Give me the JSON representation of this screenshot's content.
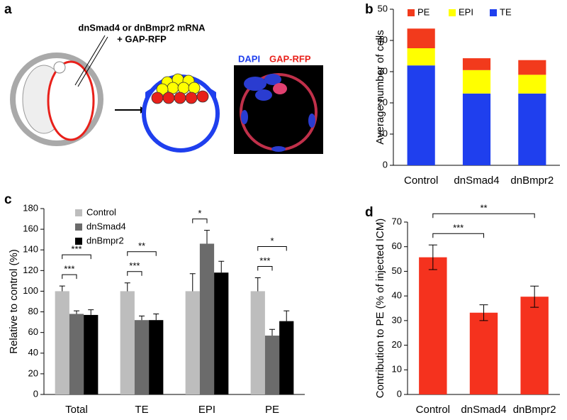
{
  "figure_a": {
    "label": "a",
    "injection": "dnSmad4 or dnBmpr2 mRNA",
    "injection_2": "+ GAP-RFP",
    "stain_1": "DAPI",
    "stain_2": "GAP-RFP"
  },
  "chart_data": [
    {
      "type": "stacked_bar",
      "label": "b",
      "ylabel": "Average number of cells",
      "categories": [
        "Control",
        "dnSmad4",
        "dnBmpr2"
      ],
      "series": [
        {
          "name": "TE",
          "color": "#1f3fee",
          "values": [
            32,
            23,
            23
          ]
        },
        {
          "name": "EPI",
          "color": "#ffff00",
          "values": [
            5.5,
            7.5,
            6
          ]
        },
        {
          "name": "PE",
          "color": "#f23a1c",
          "values": [
            6.3,
            3.8,
            4.7
          ]
        }
      ],
      "ylim": [
        0,
        50
      ],
      "yticks": [
        0,
        10,
        20,
        30,
        40,
        50
      ],
      "legend": "top"
    },
    {
      "type": "grouped_bar",
      "label": "c",
      "ylabel": "Relative to control (%)",
      "categories": [
        "Total",
        "TE",
        "EPI",
        "PE"
      ],
      "series": [
        {
          "name": "Control",
          "color": "#bdbdbd",
          "values": [
            100,
            100,
            100,
            100
          ],
          "errors": [
            5,
            8,
            17,
            13
          ]
        },
        {
          "name": "dnSmad4",
          "color": "#6b6b6b",
          "values": [
            78,
            72,
            146,
            57
          ],
          "errors": [
            3,
            4,
            13,
            6
          ]
        },
        {
          "name": "dnBmpr2",
          "color": "#000000",
          "values": [
            77,
            72,
            118,
            71
          ],
          "errors": [
            5,
            6,
            11,
            10
          ]
        }
      ],
      "annotations": [
        {
          "category": "Total",
          "from": "Control",
          "to": "dnSmad4",
          "text": "***"
        },
        {
          "category": "Total",
          "from": "Control",
          "to": "dnBmpr2",
          "text": "***"
        },
        {
          "category": "TE",
          "from": "Control",
          "to": "dnSmad4",
          "text": "***"
        },
        {
          "category": "TE",
          "from": "Control",
          "to": "dnBmpr2",
          "text": "**"
        },
        {
          "category": "EPI",
          "from": "Control",
          "to": "dnSmad4",
          "text": "*"
        },
        {
          "category": "PE",
          "from": "Control",
          "to": "dnSmad4",
          "text": "***"
        },
        {
          "category": "PE",
          "from": "Control",
          "to": "dnBmpr2",
          "text": "*"
        }
      ],
      "ylim": [
        0,
        180
      ],
      "yticks": [
        0,
        20,
        40,
        60,
        80,
        100,
        120,
        140,
        160,
        180
      ],
      "legend": "top-left"
    },
    {
      "type": "bar",
      "label": "d",
      "ylabel": "Contribution to PE (% of injected ICM)",
      "categories": [
        "Control",
        "dnSmad4",
        "dnBmpr2"
      ],
      "color": "#f5321e",
      "values": [
        55.7,
        33.2,
        39.7
      ],
      "errors": [
        5,
        3.2,
        4.3
      ],
      "annotations": [
        {
          "from": "Control",
          "to": "dnSmad4",
          "text": "***"
        },
        {
          "from": "Control",
          "to": "dnBmpr2",
          "text": "**"
        }
      ],
      "ylim": [
        0,
        70
      ],
      "yticks": [
        0,
        10,
        20,
        30,
        40,
        50,
        60,
        70
      ]
    }
  ]
}
